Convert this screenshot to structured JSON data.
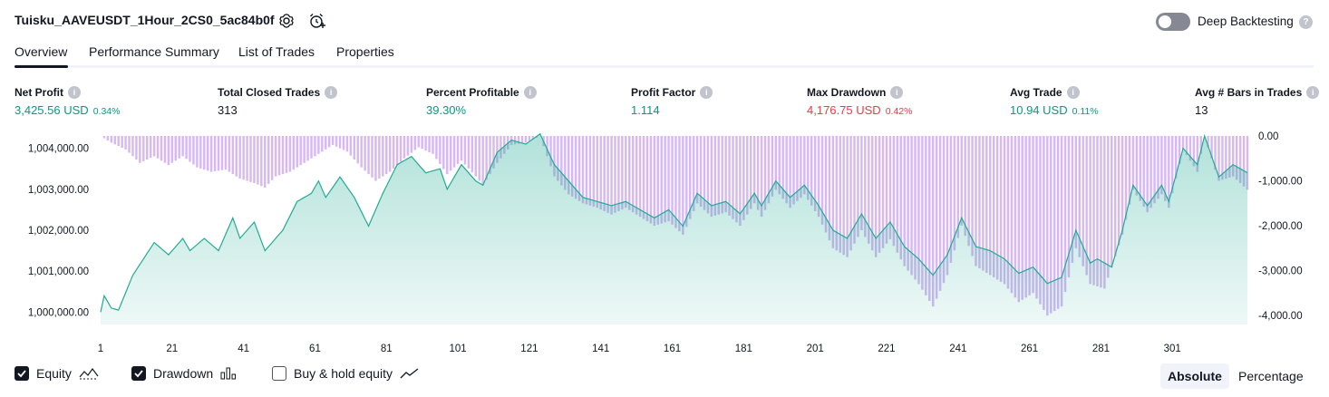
{
  "header": {
    "strategy_title": "Tuisku_AAVEUSDT_1Hour_2CS0_5ac84b0f",
    "settings_icon": "gear-icon",
    "add_alert_icon": "alarm-clock-plus-icon",
    "deep_backtesting": {
      "label": "Deep Backtesting",
      "enabled": false,
      "help_icon": "?"
    }
  },
  "tabs": [
    {
      "label": "Overview",
      "active": true
    },
    {
      "label": "Performance Summary",
      "active": false
    },
    {
      "label": "List of Trades",
      "active": false
    },
    {
      "label": "Properties",
      "active": false
    }
  ],
  "metrics": [
    {
      "label": "Net Profit",
      "value": "3,425.56",
      "unit": "USD",
      "pct": "0.34%",
      "color": "#089981"
    },
    {
      "label": "Total Closed Trades",
      "value": "313",
      "unit": "",
      "pct": "",
      "color": "#131722"
    },
    {
      "label": "Percent Profitable",
      "value": "39.30%",
      "unit": "",
      "pct": "",
      "color": "#089981"
    },
    {
      "label": "Profit Factor",
      "value": "1.114",
      "unit": "",
      "pct": "",
      "color": "#089981"
    },
    {
      "label": "Max Drawdown",
      "value": "4,176.75",
      "unit": "USD",
      "pct": "0.42%",
      "color": "#f23645"
    },
    {
      "label": "Avg Trade",
      "value": "10.94",
      "unit": "USD",
      "pct": "0.11%",
      "color": "#089981"
    },
    {
      "label": "Avg # Bars in Trades",
      "value": "13",
      "unit": "",
      "pct": "",
      "color": "#131722"
    }
  ],
  "chart_data": {
    "type": "area",
    "x_ticks": [
      "1",
      "21",
      "41",
      "61",
      "81",
      "101",
      "121",
      "141",
      "161",
      "181",
      "201",
      "221",
      "241",
      "261",
      "281",
      "301"
    ],
    "left_axis": {
      "ticks": [
        "1,000,000.00",
        "1,001,000.00",
        "1,002,000.00",
        "1,003,000.00",
        "1,004,000.00"
      ],
      "ylim": [
        999700,
        1004300
      ]
    },
    "right_axis": {
      "ticks": [
        "0.00",
        "-1,000.00",
        "-2,000.00",
        "-3,000.00",
        "-4,000.00"
      ],
      "ylim": [
        -4200,
        0
      ]
    },
    "equity_anchors": [
      [
        1,
        1000000
      ],
      [
        2,
        1000400
      ],
      [
        4,
        1000100
      ],
      [
        6,
        1000050
      ],
      [
        10,
        1000900
      ],
      [
        16,
        1001700
      ],
      [
        20,
        1001400
      ],
      [
        24,
        1001800
      ],
      [
        26,
        1001500
      ],
      [
        30,
        1001800
      ],
      [
        34,
        1001500
      ],
      [
        38,
        1002300
      ],
      [
        40,
        1001800
      ],
      [
        44,
        1002200
      ],
      [
        47,
        1001500
      ],
      [
        52,
        1002000
      ],
      [
        56,
        1002700
      ],
      [
        60,
        1002900
      ],
      [
        62,
        1003200
      ],
      [
        64,
        1002800
      ],
      [
        68,
        1003300
      ],
      [
        72,
        1002800
      ],
      [
        76,
        1002100
      ],
      [
        80,
        1002900
      ],
      [
        84,
        1003600
      ],
      [
        88,
        1003800
      ],
      [
        92,
        1003400
      ],
      [
        96,
        1003500
      ],
      [
        98,
        1003000
      ],
      [
        102,
        1003600
      ],
      [
        106,
        1003200
      ],
      [
        108,
        1003100
      ],
      [
        112,
        1003900
      ],
      [
        116,
        1004200
      ],
      [
        120,
        1004100
      ],
      [
        124,
        1004350
      ],
      [
        128,
        1003600
      ],
      [
        132,
        1003200
      ],
      [
        136,
        1002800
      ],
      [
        140,
        1002700
      ],
      [
        144,
        1002600
      ],
      [
        148,
        1002700
      ],
      [
        152,
        1002500
      ],
      [
        156,
        1002300
      ],
      [
        160,
        1002500
      ],
      [
        164,
        1002100
      ],
      [
        168,
        1002900
      ],
      [
        172,
        1002600
      ],
      [
        176,
        1002700
      ],
      [
        180,
        1002400
      ],
      [
        184,
        1002900
      ],
      [
        186,
        1002600
      ],
      [
        190,
        1003200
      ],
      [
        194,
        1002800
      ],
      [
        198,
        1003100
      ],
      [
        202,
        1002600
      ],
      [
        206,
        1002000
      ],
      [
        210,
        1001800
      ],
      [
        214,
        1002400
      ],
      [
        218,
        1001800
      ],
      [
        222,
        1002200
      ],
      [
        226,
        1001600
      ],
      [
        230,
        1001300
      ],
      [
        234,
        1000900
      ],
      [
        238,
        1001400
      ],
      [
        242,
        1002300
      ],
      [
        246,
        1001600
      ],
      [
        250,
        1001500
      ],
      [
        254,
        1001300
      ],
      [
        258,
        1000950
      ],
      [
        262,
        1001100
      ],
      [
        266,
        1000700
      ],
      [
        270,
        1000850
      ],
      [
        274,
        1002000
      ],
      [
        278,
        1001200
      ],
      [
        280,
        1001300
      ],
      [
        284,
        1001100
      ],
      [
        287,
        1002000
      ],
      [
        290,
        1003100
      ],
      [
        294,
        1002600
      ],
      [
        298,
        1003100
      ],
      [
        300,
        1002700
      ],
      [
        304,
        1004000
      ],
      [
        308,
        1003600
      ],
      [
        310,
        1004300
      ],
      [
        314,
        1003300
      ],
      [
        318,
        1003600
      ],
      [
        322,
        1003400
      ]
    ],
    "drawdown_anchors": [
      [
        1,
        0
      ],
      [
        4,
        -150
      ],
      [
        8,
        -300
      ],
      [
        12,
        -600
      ],
      [
        16,
        -450
      ],
      [
        20,
        -650
      ],
      [
        24,
        -450
      ],
      [
        28,
        -700
      ],
      [
        32,
        -800
      ],
      [
        36,
        -750
      ],
      [
        40,
        -950
      ],
      [
        44,
        -1050
      ],
      [
        47,
        -1150
      ],
      [
        50,
        -900
      ],
      [
        54,
        -800
      ],
      [
        58,
        -600
      ],
      [
        62,
        -400
      ],
      [
        66,
        -200
      ],
      [
        70,
        -350
      ],
      [
        74,
        -700
      ],
      [
        78,
        -1000
      ],
      [
        82,
        -800
      ],
      [
        86,
        -500
      ],
      [
        90,
        -250
      ],
      [
        94,
        -400
      ],
      [
        98,
        -850
      ],
      [
        102,
        -550
      ],
      [
        106,
        -900
      ],
      [
        108,
        -1100
      ],
      [
        112,
        -600
      ],
      [
        116,
        -200
      ],
      [
        120,
        -150
      ],
      [
        124,
        0
      ],
      [
        128,
        -900
      ],
      [
        132,
        -1300
      ],
      [
        136,
        -1500
      ],
      [
        140,
        -1600
      ],
      [
        144,
        -1750
      ],
      [
        148,
        -1600
      ],
      [
        152,
        -1800
      ],
      [
        156,
        -2000
      ],
      [
        160,
        -1900
      ],
      [
        164,
        -2200
      ],
      [
        168,
        -1500
      ],
      [
        172,
        -1800
      ],
      [
        176,
        -1700
      ],
      [
        180,
        -2000
      ],
      [
        184,
        -1500
      ],
      [
        186,
        -1800
      ],
      [
        190,
        -1200
      ],
      [
        194,
        -1600
      ],
      [
        198,
        -1300
      ],
      [
        202,
        -1800
      ],
      [
        206,
        -2500
      ],
      [
        210,
        -2700
      ],
      [
        214,
        -2100
      ],
      [
        218,
        -2700
      ],
      [
        222,
        -2300
      ],
      [
        226,
        -2900
      ],
      [
        230,
        -3300
      ],
      [
        234,
        -3800
      ],
      [
        238,
        -3100
      ],
      [
        242,
        -2000
      ],
      [
        246,
        -2900
      ],
      [
        250,
        -3100
      ],
      [
        254,
        -3300
      ],
      [
        258,
        -3700
      ],
      [
        262,
        -3500
      ],
      [
        266,
        -4000
      ],
      [
        270,
        -3800
      ],
      [
        274,
        -2500
      ],
      [
        278,
        -3300
      ],
      [
        282,
        -3400
      ],
      [
        287,
        -2200
      ],
      [
        290,
        -1200
      ],
      [
        294,
        -1700
      ],
      [
        298,
        -1300
      ],
      [
        300,
        -1600
      ],
      [
        304,
        -300
      ],
      [
        308,
        -800
      ],
      [
        310,
        0
      ],
      [
        314,
        -1000
      ],
      [
        318,
        -900
      ],
      [
        322,
        -1200
      ]
    ],
    "series": [
      {
        "name": "Equity",
        "color": "#22ab94"
      },
      {
        "name": "Drawdown",
        "color": "#d7b8f3"
      }
    ],
    "grid": false
  },
  "legend": {
    "equity": {
      "label": "Equity",
      "checked": true,
      "icon": "equity-line-icon"
    },
    "drawdown": {
      "label": "Drawdown",
      "checked": true,
      "icon": "drawdown-bars-icon"
    },
    "buy_hold": {
      "label": "Buy & hold equity",
      "checked": false,
      "icon": "buy-hold-line-icon"
    }
  },
  "view_toggle": {
    "absolute": "Absolute",
    "percentage": "Percentage",
    "selected": "Absolute"
  }
}
